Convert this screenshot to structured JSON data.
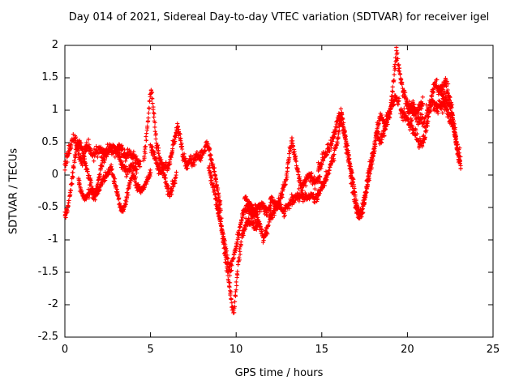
{
  "chart_data": {
    "type": "scatter",
    "title": "Day 014 of 2021, Sidereal Day-to-day VTEC variation (SDTVAR) for receiver igel",
    "xlabel": "GPS time / hours",
    "ylabel": "SDTVAR / TECUs",
    "xlim": [
      0,
      25
    ],
    "ylim": [
      -2.5,
      2
    ],
    "xticks": [
      0,
      5,
      10,
      15,
      20,
      25
    ],
    "yticks": [
      2,
      1.5,
      1,
      0.5,
      0,
      -0.5,
      -1,
      -1.5,
      -2,
      -2.5
    ],
    "grid": false,
    "legend": "none",
    "marker": "plus",
    "series_color": "#ff0000",
    "axis_color": "#000000",
    "traces": [
      {
        "spread": 0.08,
        "points": [
          [
            0,
            -0.62
          ],
          [
            0.12,
            -0.58
          ],
          [
            0.3,
            -0.3
          ],
          [
            0.5,
            0.1
          ],
          [
            0.7,
            0.45
          ],
          [
            0.9,
            0.5
          ],
          [
            1.1,
            0.28
          ],
          [
            1.3,
            0.08
          ],
          [
            1.5,
            -0.12
          ],
          [
            1.7,
            -0.35
          ],
          [
            1.9,
            -0.18
          ],
          [
            2.1,
            0.12
          ],
          [
            2.4,
            0.35
          ],
          [
            2.7,
            0.45
          ],
          [
            3.0,
            0.4
          ],
          [
            3.3,
            0.18
          ],
          [
            3.6,
            0.05
          ],
          [
            3.9,
            0.15
          ],
          [
            4.2,
            0.08
          ]
        ]
      },
      {
        "spread": 0.09,
        "points": [
          [
            0,
            0.15
          ],
          [
            0.2,
            0.32
          ],
          [
            0.4,
            0.52
          ],
          [
            0.6,
            0.55
          ],
          [
            0.8,
            0.35
          ],
          [
            1.0,
            0.15
          ],
          [
            1.2,
            0.4
          ],
          [
            1.4,
            0.45
          ],
          [
            1.6,
            0.3
          ],
          [
            1.8,
            0.35
          ],
          [
            2.0,
            0.42
          ],
          [
            2.3,
            0.32
          ],
          [
            2.6,
            0.42
          ],
          [
            2.9,
            0.36
          ],
          [
            3.2,
            0.45
          ],
          [
            3.5,
            0.3
          ],
          [
            3.8,
            0.34
          ],
          [
            4.1,
            0.28
          ],
          [
            4.4,
            0.12
          ]
        ]
      },
      {
        "spread": 0.07,
        "points": [
          [
            0.8,
            -0.08
          ],
          [
            1.0,
            -0.3
          ],
          [
            1.2,
            -0.36
          ],
          [
            1.5,
            -0.25
          ],
          [
            1.8,
            -0.3
          ],
          [
            2.1,
            -0.15
          ],
          [
            2.4,
            0.0
          ],
          [
            2.7,
            0.1
          ],
          [
            3.0,
            -0.2
          ],
          [
            3.2,
            -0.45
          ],
          [
            3.4,
            -0.56
          ],
          [
            3.6,
            -0.35
          ],
          [
            3.8,
            -0.1
          ],
          [
            4.0,
            0.0
          ],
          [
            4.2,
            -0.15
          ],
          [
            4.5,
            -0.25
          ],
          [
            4.8,
            -0.1
          ],
          [
            5.0,
            0.05
          ]
        ]
      },
      {
        "spread": 0.1,
        "points": [
          [
            4.6,
            0.2
          ],
          [
            4.75,
            0.55
          ],
          [
            4.85,
            0.85
          ],
          [
            4.95,
            1.15
          ],
          [
            5.05,
            1.32
          ],
          [
            5.15,
            1.05
          ],
          [
            5.25,
            0.75
          ],
          [
            5.35,
            0.5
          ],
          [
            5.5,
            0.3
          ],
          [
            5.7,
            0.1
          ],
          [
            5.9,
            -0.12
          ],
          [
            6.1,
            -0.3
          ],
          [
            6.3,
            -0.18
          ],
          [
            6.5,
            0.0
          ]
        ]
      },
      {
        "spread": 0.08,
        "points": [
          [
            5.0,
            0.45
          ],
          [
            5.2,
            0.3
          ],
          [
            5.4,
            0.15
          ],
          [
            5.6,
            0.05
          ],
          [
            5.8,
            0.15
          ],
          [
            6.0,
            0.1
          ],
          [
            6.2,
            0.3
          ],
          [
            6.4,
            0.55
          ],
          [
            6.6,
            0.75
          ],
          [
            6.75,
            0.55
          ],
          [
            6.9,
            0.3
          ],
          [
            7.1,
            0.15
          ],
          [
            7.3,
            0.25
          ],
          [
            7.5,
            0.2
          ],
          [
            7.7,
            0.3
          ],
          [
            7.9,
            0.25
          ],
          [
            8.1,
            0.35
          ],
          [
            8.3,
            0.5
          ],
          [
            8.5,
            0.3
          ],
          [
            8.7,
            0.08
          ],
          [
            8.9,
            -0.2
          ],
          [
            9.1,
            -0.5
          ]
        ]
      },
      {
        "spread": 0.1,
        "points": [
          [
            8.4,
            0.1
          ],
          [
            8.7,
            -0.2
          ],
          [
            9.0,
            -0.6
          ],
          [
            9.2,
            -0.92
          ],
          [
            9.4,
            -1.3
          ],
          [
            9.6,
            -1.72
          ],
          [
            9.75,
            -2.0
          ],
          [
            9.85,
            -2.1
          ],
          [
            9.95,
            -1.88
          ],
          [
            10.05,
            -1.6
          ],
          [
            10.15,
            -1.3
          ],
          [
            10.3,
            -1.0
          ],
          [
            10.5,
            -0.8
          ],
          [
            10.7,
            -0.7
          ],
          [
            10.9,
            -0.75
          ],
          [
            11.1,
            -0.8
          ],
          [
            11.3,
            -0.74
          ]
        ]
      },
      {
        "spread": 0.09,
        "points": [
          [
            8.8,
            -0.3
          ],
          [
            9.1,
            -0.7
          ],
          [
            9.3,
            -1.02
          ],
          [
            9.5,
            -1.3
          ],
          [
            9.65,
            -1.46
          ],
          [
            9.8,
            -1.34
          ],
          [
            10.0,
            -1.1
          ],
          [
            10.2,
            -0.85
          ],
          [
            10.4,
            -0.6
          ],
          [
            10.6,
            -0.5
          ],
          [
            10.8,
            -0.56
          ],
          [
            11.0,
            -0.62
          ],
          [
            11.2,
            -0.5
          ],
          [
            11.5,
            -0.46
          ],
          [
            11.8,
            -0.56
          ],
          [
            12.0,
            -0.5
          ]
        ]
      },
      {
        "spread": 0.08,
        "points": [
          [
            10.5,
            -0.35
          ],
          [
            10.8,
            -0.45
          ],
          [
            11.1,
            -0.55
          ],
          [
            11.4,
            -0.8
          ],
          [
            11.6,
            -1.0
          ],
          [
            11.8,
            -0.85
          ],
          [
            12.0,
            -0.65
          ],
          [
            12.3,
            -0.5
          ],
          [
            12.6,
            -0.35
          ],
          [
            12.9,
            -0.1
          ],
          [
            13.1,
            0.3
          ],
          [
            13.25,
            0.56
          ],
          [
            13.4,
            0.35
          ],
          [
            13.6,
            0.05
          ],
          [
            13.8,
            -0.2
          ],
          [
            14.0,
            -0.1
          ],
          [
            14.3,
            0.0
          ],
          [
            14.6,
            -0.12
          ],
          [
            14.9,
            -0.05
          ]
        ]
      },
      {
        "spread": 0.09,
        "points": [
          [
            12.0,
            -0.35
          ],
          [
            12.4,
            -0.46
          ],
          [
            12.8,
            -0.56
          ],
          [
            13.2,
            -0.4
          ],
          [
            13.6,
            -0.3
          ],
          [
            14.0,
            -0.36
          ],
          [
            14.4,
            -0.3
          ],
          [
            14.7,
            -0.36
          ],
          [
            15.0,
            -0.2
          ],
          [
            15.3,
            0.0
          ],
          [
            15.6,
            0.2
          ],
          [
            15.9,
            0.5
          ],
          [
            16.1,
            0.85
          ],
          [
            16.3,
            0.7
          ],
          [
            16.5,
            0.4
          ],
          [
            16.7,
            0.1
          ],
          [
            16.9,
            -0.25
          ],
          [
            17.1,
            -0.55
          ],
          [
            17.3,
            -0.62
          ],
          [
            17.5,
            -0.4
          ],
          [
            17.7,
            -0.1
          ],
          [
            17.9,
            0.2
          ],
          [
            18.1,
            0.5
          ],
          [
            18.3,
            0.8
          ],
          [
            18.5,
            0.9
          ],
          [
            18.7,
            0.75
          ],
          [
            18.9,
            0.9
          ],
          [
            19.1,
            1.1
          ],
          [
            19.3,
            1.2
          ],
          [
            19.5,
            1.12
          ]
        ]
      },
      {
        "spread": 0.1,
        "points": [
          [
            14.8,
            0.1
          ],
          [
            15.1,
            0.25
          ],
          [
            15.4,
            0.4
          ],
          [
            15.7,
            0.6
          ],
          [
            15.95,
            0.9
          ],
          [
            16.15,
            0.95
          ],
          [
            16.35,
            0.6
          ],
          [
            16.55,
            0.25
          ],
          [
            16.75,
            -0.1
          ],
          [
            16.95,
            -0.45
          ],
          [
            17.15,
            -0.65
          ],
          [
            17.35,
            -0.55
          ],
          [
            17.55,
            -0.25
          ],
          [
            17.75,
            0.05
          ],
          [
            18.0,
            0.3
          ],
          [
            18.2,
            0.62
          ],
          [
            18.4,
            0.5
          ],
          [
            18.6,
            0.66
          ],
          [
            18.8,
            0.85
          ],
          [
            19.0,
            1.0
          ],
          [
            19.15,
            1.3
          ],
          [
            19.25,
            1.62
          ],
          [
            19.35,
            1.92
          ],
          [
            19.45,
            1.75
          ],
          [
            19.6,
            1.5
          ],
          [
            19.75,
            1.3
          ],
          [
            19.9,
            1.15
          ],
          [
            20.1,
            1.05
          ],
          [
            20.3,
            1.0
          ],
          [
            20.5,
            0.95
          ],
          [
            20.7,
            1.05
          ],
          [
            20.9,
            1.12
          ]
        ]
      },
      {
        "spread": 0.1,
        "points": [
          [
            19.6,
            1.0
          ],
          [
            19.9,
            0.9
          ],
          [
            20.2,
            0.78
          ],
          [
            20.5,
            0.6
          ],
          [
            20.8,
            0.46
          ],
          [
            21.0,
            0.56
          ],
          [
            21.2,
            0.85
          ],
          [
            21.4,
            1.2
          ],
          [
            21.6,
            1.42
          ],
          [
            21.8,
            1.3
          ],
          [
            22.0,
            1.36
          ],
          [
            22.2,
            1.46
          ],
          [
            22.4,
            1.25
          ],
          [
            22.6,
            1.0
          ],
          [
            22.8,
            0.6
          ],
          [
            23.0,
            0.25
          ]
        ]
      },
      {
        "spread": 0.12,
        "points": [
          [
            20.0,
            0.95
          ],
          [
            20.3,
            1.05
          ],
          [
            20.6,
            0.9
          ],
          [
            20.9,
            0.8
          ],
          [
            21.2,
            1.0
          ],
          [
            21.5,
            1.12
          ],
          [
            21.8,
            1.05
          ],
          [
            22.1,
            1.1
          ],
          [
            22.4,
            0.95
          ],
          [
            22.7,
            0.75
          ],
          [
            22.9,
            0.45
          ],
          [
            23.1,
            0.2
          ]
        ]
      },
      {
        "spread": 0.1,
        "points": [
          [
            21.9,
            1.3
          ],
          [
            22.1,
            1.2
          ],
          [
            22.3,
            1.15
          ],
          [
            22.5,
            1.05
          ],
          [
            22.65,
            0.85
          ],
          [
            22.8,
            0.55
          ],
          [
            22.95,
            0.3
          ],
          [
            23.1,
            0.15
          ]
        ]
      }
    ]
  }
}
